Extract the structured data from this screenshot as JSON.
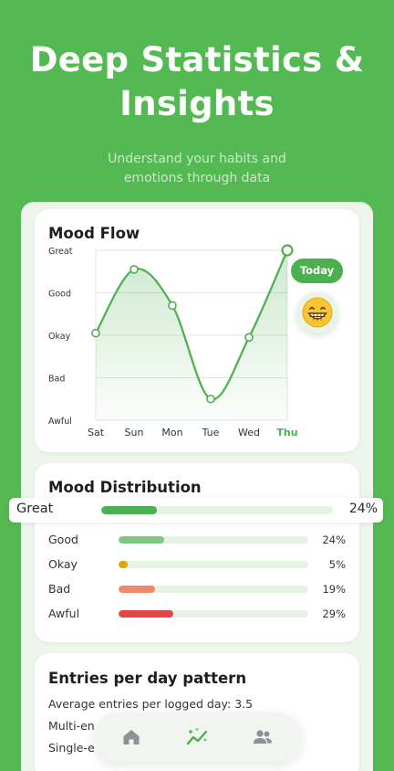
{
  "hero": {
    "title_line1": "Deep Statistics &",
    "title_line2": "Insights",
    "subtitle_line1": "Understand your habits and",
    "subtitle_line2": "emotions through data"
  },
  "mood_flow": {
    "title": "Mood Flow",
    "today_label": "Today",
    "emoji": "😁",
    "colors": {
      "line": "#4caf50",
      "grid": "#e4e4e4",
      "today": "#4caf50"
    }
  },
  "chart_data": {
    "type": "line",
    "title": "Mood Flow",
    "categories": [
      "Sat",
      "Sun",
      "Mon",
      "Tue",
      "Wed",
      "Thu"
    ],
    "y_levels": [
      "Awful",
      "Bad",
      "Okay",
      "Good",
      "Great"
    ],
    "values": [
      2.05,
      3.55,
      2.7,
      0.5,
      1.95,
      4.0
    ],
    "ylim": [
      0,
      4
    ],
    "highlight_category": "Thu",
    "grid": true
  },
  "distribution": {
    "title": "Mood Distribution",
    "rows": [
      {
        "label": "Great",
        "percent_text": "24%",
        "fraction": 0.24,
        "color": "#4caf50"
      },
      {
        "label": "Good",
        "percent_text": "24%",
        "fraction": 0.24,
        "color": "#81c784"
      },
      {
        "label": "Okay",
        "percent_text": "5%",
        "fraction": 0.05,
        "color": "#e0a800"
      },
      {
        "label": "Bad",
        "percent_text": "19%",
        "fraction": 0.19,
        "color": "#f0896a"
      },
      {
        "label": "Awful",
        "percent_text": "29%",
        "fraction": 0.29,
        "color": "#e04848"
      }
    ]
  },
  "entries": {
    "title": "Entries per day pattern",
    "line1": "Average entries per logged day: 3.5",
    "line2": "Multi-en",
    "line3": "Single-e"
  },
  "nav": {
    "items": [
      {
        "name": "home-icon",
        "active": false
      },
      {
        "name": "insights-icon",
        "active": true
      },
      {
        "name": "people-icon",
        "active": false
      }
    ]
  }
}
